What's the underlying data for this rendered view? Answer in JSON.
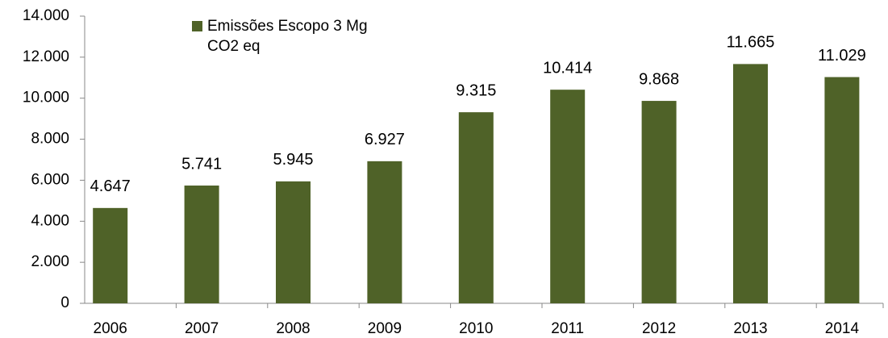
{
  "chart_data": {
    "type": "bar",
    "categories": [
      "2006",
      "2007",
      "2008",
      "2009",
      "2010",
      "2011",
      "2012",
      "2013",
      "2014"
    ],
    "series": [
      {
        "name": "Emissões Escopo 3 Mg CO2 eq",
        "color": "#4f6228",
        "values": [
          4647,
          5741,
          5945,
          6927,
          9315,
          10414,
          9868,
          11665,
          11029
        ],
        "value_labels": [
          "4.647",
          "5.741",
          "5.945",
          "6.927",
          "9.315",
          "10.414",
          "9.868",
          "11.665",
          "11.029"
        ]
      }
    ],
    "ylim": [
      0,
      14000
    ],
    "yticks": [
      0,
      {
        "value": 2000,
        "label": "2.000"
      },
      {
        "value": 4000,
        "label": "4.000"
      },
      {
        "value": 6000,
        "label": "6.000"
      },
      {
        "value": 8000,
        "label": "8.000"
      },
      {
        "value": 10000,
        "label": "10.000"
      },
      {
        "value": 12000,
        "label": "12.000"
      },
      {
        "value": 14000,
        "label": "14.000"
      }
    ],
    "grid": false,
    "legend": "top-left"
  }
}
